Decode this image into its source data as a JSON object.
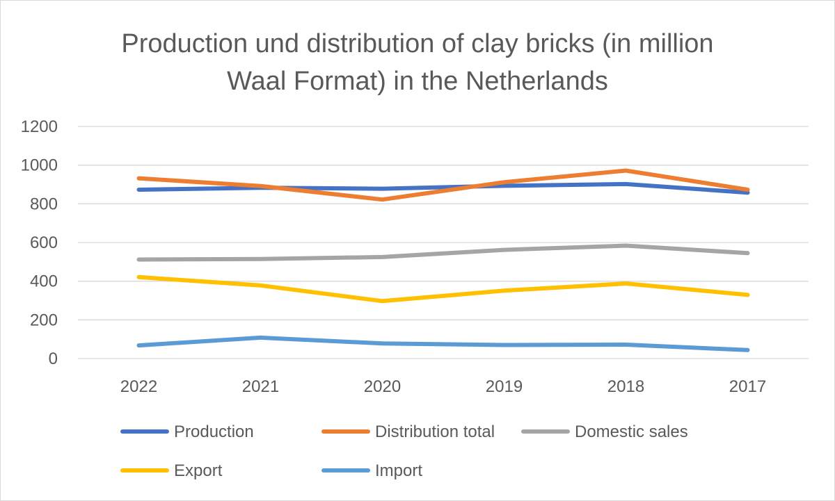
{
  "chart_data": {
    "type": "line",
    "title": "Production und distribution of clay bricks (in million Waal Format) in the Netherlands",
    "xlabel": "",
    "ylabel": "",
    "categories": [
      "2022",
      "2021",
      "2020",
      "2019",
      "2018",
      "2017"
    ],
    "ylim": [
      0,
      1200
    ],
    "yticks": [
      0,
      200,
      400,
      600,
      800,
      1000,
      1200
    ],
    "grid": true,
    "legend_position": "bottom",
    "series": [
      {
        "name": "Production",
        "color": "#4472C4",
        "values": [
          873,
          883,
          878,
          893,
          902,
          858
        ]
      },
      {
        "name": "Distribution total",
        "color": "#ED7D31",
        "values": [
          932,
          892,
          822,
          912,
          972,
          873
        ]
      },
      {
        "name": "Domestic sales",
        "color": "#A5A5A5",
        "values": [
          512,
          515,
          525,
          562,
          584,
          545
        ]
      },
      {
        "name": "Export",
        "color": "#FFC000",
        "values": [
          421,
          378,
          297,
          351,
          388,
          329
        ]
      },
      {
        "name": "Import",
        "color": "#5B9BD5",
        "values": [
          68,
          108,
          78,
          70,
          72,
          44
        ]
      }
    ]
  }
}
